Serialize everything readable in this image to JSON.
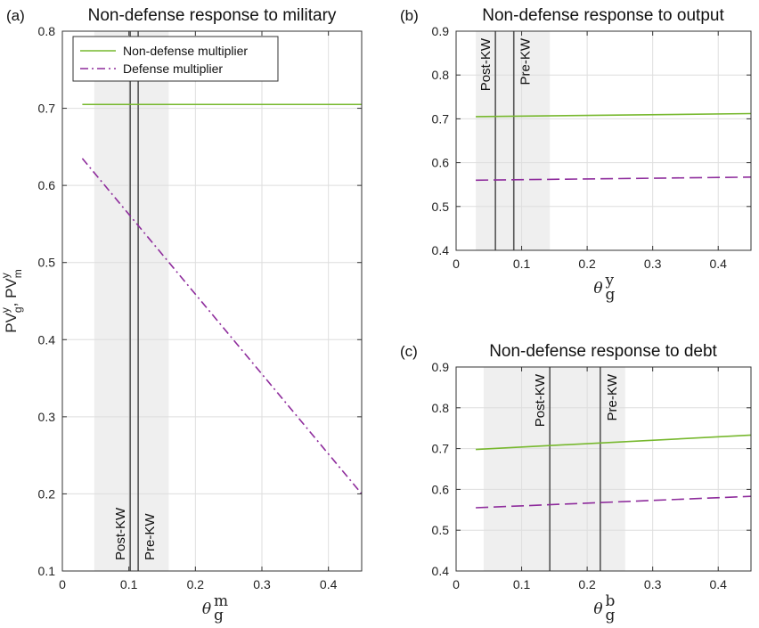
{
  "chart_data": [
    {
      "type": "line",
      "panel_label": "(a)",
      "title": "Non-defense response to military",
      "xlabel": {
        "base": "θ",
        "sup": "m",
        "sub": "g"
      },
      "ylabel": {
        "parts": [
          {
            "t": "PV"
          },
          {
            "sup": "y"
          },
          {
            "sub": "g"
          },
          {
            "t": ", PV"
          },
          {
            "sup": "y"
          },
          {
            "sub": "m"
          }
        ]
      },
      "xlim": [
        0,
        0.45
      ],
      "ylim": [
        0.1,
        0.8
      ],
      "xticks": [
        0,
        0.1,
        0.2,
        0.3,
        0.4
      ],
      "xtick_labels": [
        "0",
        "0.1",
        "0.2",
        "0.3",
        "0.4"
      ],
      "yticks": [
        0.1,
        0.2,
        0.3,
        0.4,
        0.5,
        0.6,
        0.7,
        0.8
      ],
      "ytick_labels": [
        "0.1",
        "0.2",
        "0.3",
        "0.4",
        "0.5",
        "0.6",
        "0.7",
        "0.8"
      ],
      "grid": true,
      "shaded_band": [
        0.048,
        0.16
      ],
      "vlines": [
        {
          "x": 0.102,
          "label": "Post-KW",
          "label_side": "left",
          "label_pos": "bottom"
        },
        {
          "x": 0.114,
          "label": "Pre-KW",
          "label_side": "right",
          "label_pos": "bottom"
        }
      ],
      "legend": {
        "placement": "top-left",
        "entries": [
          "Non-defense multiplier",
          "Defense multiplier"
        ]
      },
      "series": [
        {
          "name": "Non-defense multiplier",
          "style": "solid",
          "color": "#77b82e",
          "x": [
            0.03,
            0.45
          ],
          "y": [
            0.705,
            0.705
          ]
        },
        {
          "name": "Defense multiplier",
          "style": "dashdot",
          "color": "#8e2c9c",
          "x": [
            0.03,
            0.45
          ],
          "y": [
            0.635,
            0.2
          ]
        }
      ]
    },
    {
      "type": "line",
      "panel_label": "(b)",
      "title": "Non-defense response to output",
      "xlabel": {
        "base": "θ",
        "sup": "y",
        "sub": "g"
      },
      "xlim": [
        0,
        0.45
      ],
      "ylim": [
        0.4,
        0.9
      ],
      "xticks": [
        0,
        0.1,
        0.2,
        0.3,
        0.4
      ],
      "xtick_labels": [
        "0",
        "0.1",
        "0.2",
        "0.3",
        "0.4"
      ],
      "yticks": [
        0.4,
        0.5,
        0.6,
        0.7,
        0.8,
        0.9
      ],
      "ytick_labels": [
        "0.4",
        "0.5",
        "0.6",
        "0.7",
        "0.8",
        "0.9"
      ],
      "grid": true,
      "shaded_band": [
        0.03,
        0.143
      ],
      "vlines": [
        {
          "x": 0.06,
          "label": "Post-KW",
          "label_side": "left",
          "label_pos": "top"
        },
        {
          "x": 0.088,
          "label": "Pre-KW",
          "label_side": "right",
          "label_pos": "top"
        }
      ],
      "series": [
        {
          "name": "Non-defense multiplier",
          "style": "solid",
          "color": "#77b82e",
          "x": [
            0.03,
            0.45
          ],
          "y": [
            0.705,
            0.712
          ]
        },
        {
          "name": "Defense multiplier",
          "style": "dashed",
          "color": "#8e2c9c",
          "x": [
            0.03,
            0.45
          ],
          "y": [
            0.56,
            0.567
          ]
        }
      ]
    },
    {
      "type": "line",
      "panel_label": "(c)",
      "title": "Non-defense response to debt",
      "xlabel": {
        "base": "θ",
        "sup": "b",
        "sub": "g"
      },
      "xlim": [
        0,
        0.45
      ],
      "ylim": [
        0.4,
        0.9
      ],
      "xticks": [
        0,
        0.1,
        0.2,
        0.3,
        0.4
      ],
      "xtick_labels": [
        "0",
        "0.1",
        "0.2",
        "0.3",
        "0.4"
      ],
      "yticks": [
        0.4,
        0.5,
        0.6,
        0.7,
        0.8,
        0.9
      ],
      "ytick_labels": [
        "0.4",
        "0.5",
        "0.6",
        "0.7",
        "0.8",
        "0.9"
      ],
      "grid": true,
      "shaded_band": [
        0.042,
        0.258
      ],
      "vlines": [
        {
          "x": 0.143,
          "label": "Post-KW",
          "label_side": "left",
          "label_pos": "top"
        },
        {
          "x": 0.22,
          "label": "Pre-KW",
          "label_side": "right",
          "label_pos": "top"
        }
      ],
      "series": [
        {
          "name": "Non-defense multiplier",
          "style": "solid",
          "color": "#77b82e",
          "x": [
            0.03,
            0.45
          ],
          "y": [
            0.698,
            0.733
          ]
        },
        {
          "name": "Defense multiplier",
          "style": "dashed",
          "color": "#8e2c9c",
          "x": [
            0.03,
            0.45
          ],
          "y": [
            0.555,
            0.583
          ]
        }
      ]
    }
  ]
}
